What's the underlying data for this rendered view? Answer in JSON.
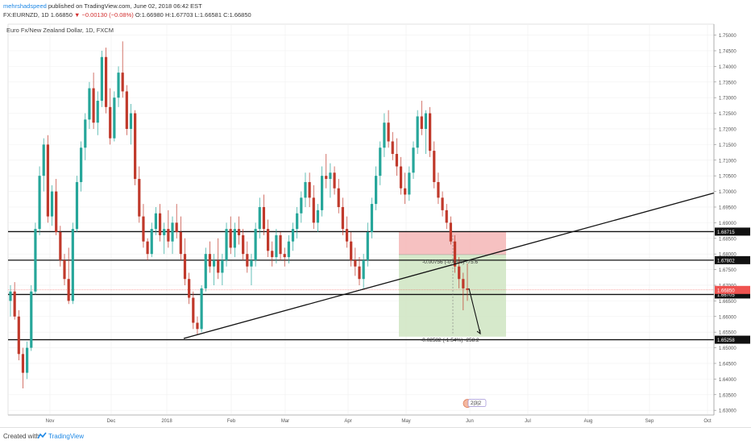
{
  "header": {
    "author": "mehrshadspeed",
    "published": "published on TradingView.com, June 02, 2018 06:42 EST",
    "symbol": "FX:EURNZD, 1D",
    "last": "1.66850",
    "change": "−0.00130 (−0.08%)",
    "ohlc": "O:1.66980 H:1.67703 L:1.66581 C:1.66850"
  },
  "chart_data": {
    "type": "candlestick",
    "title": "Euro Fx/New Zealand Dollar, 1D, FXCM",
    "y_ticks": [
      "1.75000",
      "1.74500",
      "1.74000",
      "1.73500",
      "1.73000",
      "1.72500",
      "1.72000",
      "1.71500",
      "1.71000",
      "1.70500",
      "1.70000",
      "1.69500",
      "1.69000",
      "1.68500",
      "1.68000",
      "1.67500",
      "1.67000",
      "1.66500",
      "1.66000",
      "1.65500",
      "1.65000",
      "1.64500",
      "1.64000",
      "1.63500",
      "1.63000"
    ],
    "ylim": [
      1.6285,
      1.7535
    ],
    "x_ticks": [
      "Nov",
      "Dec",
      "2018",
      "Feb",
      "Mar",
      "Apr",
      "May",
      "Jun",
      "Jul",
      "Aug",
      "Sep",
      "Oct"
    ],
    "horizontal_levels": [
      {
        "value": 1.68715,
        "label": "1.68715"
      },
      {
        "value": 1.67802,
        "label": "1.67802"
      },
      {
        "value": 1.66705,
        "label": "1.66705"
      },
      {
        "value": 1.65258,
        "label": "1.65258"
      }
    ],
    "last_price": {
      "value": 1.6685,
      "label": "1.66850"
    },
    "annotations": {
      "stop_zone_text": "-0.00756 (-0.45%) -75.6",
      "target_zone_text": "-0.02582 (-1.54%) -258.2",
      "icon_text": "2|3|2"
    },
    "colors": {
      "up": "#26a69a",
      "down": "#c0392b",
      "stop": "#f4b6b6",
      "target": "#cfe5c2",
      "last": "#ef5350"
    },
    "candles": [
      {
        "o": 1.665,
        "h": 1.67,
        "l": 1.66,
        "c": 1.668
      },
      {
        "o": 1.668,
        "h": 1.671,
        "l": 1.659,
        "c": 1.66
      },
      {
        "o": 1.66,
        "h": 1.662,
        "l": 1.646,
        "c": 1.648
      },
      {
        "o": 1.648,
        "h": 1.65,
        "l": 1.637,
        "c": 1.642
      },
      {
        "o": 1.642,
        "h": 1.652,
        "l": 1.64,
        "c": 1.65
      },
      {
        "o": 1.65,
        "h": 1.67,
        "l": 1.649,
        "c": 1.668
      },
      {
        "o": 1.668,
        "h": 1.69,
        "l": 1.667,
        "c": 1.688
      },
      {
        "o": 1.688,
        "h": 1.708,
        "l": 1.686,
        "c": 1.705
      },
      {
        "o": 1.705,
        "h": 1.717,
        "l": 1.7,
        "c": 1.715
      },
      {
        "o": 1.715,
        "h": 1.718,
        "l": 1.69,
        "c": 1.692
      },
      {
        "o": 1.692,
        "h": 1.702,
        "l": 1.689,
        "c": 1.7
      },
      {
        "o": 1.7,
        "h": 1.704,
        "l": 1.686,
        "c": 1.687
      },
      {
        "o": 1.687,
        "h": 1.689,
        "l": 1.676,
        "c": 1.678
      },
      {
        "o": 1.678,
        "h": 1.68,
        "l": 1.67,
        "c": 1.672
      },
      {
        "o": 1.672,
        "h": 1.682,
        "l": 1.664,
        "c": 1.665
      },
      {
        "o": 1.665,
        "h": 1.69,
        "l": 1.664,
        "c": 1.688
      },
      {
        "o": 1.688,
        "h": 1.705,
        "l": 1.687,
        "c": 1.703
      },
      {
        "o": 1.703,
        "h": 1.716,
        "l": 1.7,
        "c": 1.714
      },
      {
        "o": 1.714,
        "h": 1.725,
        "l": 1.71,
        "c": 1.723
      },
      {
        "o": 1.723,
        "h": 1.735,
        "l": 1.72,
        "c": 1.733
      },
      {
        "o": 1.733,
        "h": 1.738,
        "l": 1.72,
        "c": 1.722
      },
      {
        "o": 1.722,
        "h": 1.732,
        "l": 1.718,
        "c": 1.729
      },
      {
        "o": 1.729,
        "h": 1.745,
        "l": 1.727,
        "c": 1.743
      },
      {
        "o": 1.743,
        "h": 1.746,
        "l": 1.725,
        "c": 1.727
      },
      {
        "o": 1.727,
        "h": 1.733,
        "l": 1.715,
        "c": 1.717
      },
      {
        "o": 1.717,
        "h": 1.732,
        "l": 1.716,
        "c": 1.73
      },
      {
        "o": 1.73,
        "h": 1.74,
        "l": 1.727,
        "c": 1.738
      },
      {
        "o": 1.738,
        "h": 1.748,
        "l": 1.73,
        "c": 1.732
      },
      {
        "o": 1.732,
        "h": 1.734,
        "l": 1.718,
        "c": 1.72
      },
      {
        "o": 1.72,
        "h": 1.728,
        "l": 1.715,
        "c": 1.725
      },
      {
        "o": 1.725,
        "h": 1.726,
        "l": 1.702,
        "c": 1.704
      },
      {
        "o": 1.704,
        "h": 1.708,
        "l": 1.69,
        "c": 1.692
      },
      {
        "o": 1.692,
        "h": 1.696,
        "l": 1.682,
        "c": 1.684
      },
      {
        "o": 1.684,
        "h": 1.685,
        "l": 1.678,
        "c": 1.68
      },
      {
        "o": 1.68,
        "h": 1.69,
        "l": 1.679,
        "c": 1.688
      },
      {
        "o": 1.688,
        "h": 1.695,
        "l": 1.686,
        "c": 1.693
      },
      {
        "o": 1.693,
        "h": 1.696,
        "l": 1.684,
        "c": 1.686
      },
      {
        "o": 1.686,
        "h": 1.69,
        "l": 1.68,
        "c": 1.688
      },
      {
        "o": 1.688,
        "h": 1.694,
        "l": 1.682,
        "c": 1.684
      },
      {
        "o": 1.684,
        "h": 1.692,
        "l": 1.68,
        "c": 1.69
      },
      {
        "o": 1.69,
        "h": 1.696,
        "l": 1.685,
        "c": 1.687
      },
      {
        "o": 1.687,
        "h": 1.692,
        "l": 1.678,
        "c": 1.68
      },
      {
        "o": 1.68,
        "h": 1.685,
        "l": 1.67,
        "c": 1.672
      },
      {
        "o": 1.672,
        "h": 1.674,
        "l": 1.664,
        "c": 1.666
      },
      {
        "o": 1.666,
        "h": 1.668,
        "l": 1.656,
        "c": 1.658
      },
      {
        "o": 1.658,
        "h": 1.66,
        "l": 1.654,
        "c": 1.656
      },
      {
        "o": 1.656,
        "h": 1.67,
        "l": 1.655,
        "c": 1.669
      },
      {
        "o": 1.669,
        "h": 1.682,
        "l": 1.668,
        "c": 1.68
      },
      {
        "o": 1.68,
        "h": 1.684,
        "l": 1.674,
        "c": 1.676
      },
      {
        "o": 1.676,
        "h": 1.68,
        "l": 1.67,
        "c": 1.678
      },
      {
        "o": 1.678,
        "h": 1.685,
        "l": 1.672,
        "c": 1.674
      },
      {
        "o": 1.674,
        "h": 1.68,
        "l": 1.67,
        "c": 1.678
      },
      {
        "o": 1.678,
        "h": 1.69,
        "l": 1.676,
        "c": 1.688
      },
      {
        "o": 1.688,
        "h": 1.692,
        "l": 1.68,
        "c": 1.682
      },
      {
        "o": 1.682,
        "h": 1.69,
        "l": 1.679,
        "c": 1.688
      },
      {
        "o": 1.688,
        "h": 1.692,
        "l": 1.683,
        "c": 1.686
      },
      {
        "o": 1.686,
        "h": 1.688,
        "l": 1.678,
        "c": 1.68
      },
      {
        "o": 1.68,
        "h": 1.684,
        "l": 1.674,
        "c": 1.676
      },
      {
        "o": 1.676,
        "h": 1.68,
        "l": 1.67,
        "c": 1.678
      },
      {
        "o": 1.678,
        "h": 1.69,
        "l": 1.676,
        "c": 1.688
      },
      {
        "o": 1.688,
        "h": 1.698,
        "l": 1.685,
        "c": 1.695
      },
      {
        "o": 1.695,
        "h": 1.699,
        "l": 1.686,
        "c": 1.688
      },
      {
        "o": 1.688,
        "h": 1.691,
        "l": 1.679,
        "c": 1.681
      },
      {
        "o": 1.681,
        "h": 1.684,
        "l": 1.676,
        "c": 1.679
      },
      {
        "o": 1.679,
        "h": 1.688,
        "l": 1.677,
        "c": 1.686
      },
      {
        "o": 1.686,
        "h": 1.687,
        "l": 1.678,
        "c": 1.68
      },
      {
        "o": 1.68,
        "h": 1.682,
        "l": 1.676,
        "c": 1.679
      },
      {
        "o": 1.679,
        "h": 1.686,
        "l": 1.677,
        "c": 1.684
      },
      {
        "o": 1.684,
        "h": 1.69,
        "l": 1.681,
        "c": 1.688
      },
      {
        "o": 1.688,
        "h": 1.695,
        "l": 1.685,
        "c": 1.693
      },
      {
        "o": 1.693,
        "h": 1.7,
        "l": 1.69,
        "c": 1.698
      },
      {
        "o": 1.698,
        "h": 1.706,
        "l": 1.695,
        "c": 1.703
      },
      {
        "o": 1.703,
        "h": 1.706,
        "l": 1.695,
        "c": 1.698
      },
      {
        "o": 1.698,
        "h": 1.702,
        "l": 1.688,
        "c": 1.69
      },
      {
        "o": 1.69,
        "h": 1.696,
        "l": 1.687,
        "c": 1.694
      },
      {
        "o": 1.694,
        "h": 1.708,
        "l": 1.692,
        "c": 1.705
      },
      {
        "o": 1.705,
        "h": 1.712,
        "l": 1.701,
        "c": 1.704
      },
      {
        "o": 1.704,
        "h": 1.709,
        "l": 1.698,
        "c": 1.706
      },
      {
        "o": 1.706,
        "h": 1.708,
        "l": 1.699,
        "c": 1.701
      },
      {
        "o": 1.701,
        "h": 1.704,
        "l": 1.693,
        "c": 1.695
      },
      {
        "o": 1.695,
        "h": 1.698,
        "l": 1.686,
        "c": 1.688
      },
      {
        "o": 1.688,
        "h": 1.692,
        "l": 1.682,
        "c": 1.684
      },
      {
        "o": 1.684,
        "h": 1.687,
        "l": 1.676,
        "c": 1.678
      },
      {
        "o": 1.678,
        "h": 1.682,
        "l": 1.673,
        "c": 1.676
      },
      {
        "o": 1.676,
        "h": 1.679,
        "l": 1.67,
        "c": 1.672
      },
      {
        "o": 1.672,
        "h": 1.68,
        "l": 1.669,
        "c": 1.678
      },
      {
        "o": 1.678,
        "h": 1.69,
        "l": 1.676,
        "c": 1.687
      },
      {
        "o": 1.687,
        "h": 1.698,
        "l": 1.685,
        "c": 1.696
      },
      {
        "o": 1.696,
        "h": 1.708,
        "l": 1.694,
        "c": 1.705
      },
      {
        "o": 1.705,
        "h": 1.716,
        "l": 1.702,
        "c": 1.714
      },
      {
        "o": 1.714,
        "h": 1.725,
        "l": 1.711,
        "c": 1.722
      },
      {
        "o": 1.722,
        "h": 1.726,
        "l": 1.714,
        "c": 1.716
      },
      {
        "o": 1.716,
        "h": 1.719,
        "l": 1.71,
        "c": 1.712
      },
      {
        "o": 1.712,
        "h": 1.717,
        "l": 1.705,
        "c": 1.708
      },
      {
        "o": 1.708,
        "h": 1.711,
        "l": 1.699,
        "c": 1.701
      },
      {
        "o": 1.701,
        "h": 1.706,
        "l": 1.696,
        "c": 1.699
      },
      {
        "o": 1.699,
        "h": 1.708,
        "l": 1.697,
        "c": 1.706
      },
      {
        "o": 1.706,
        "h": 1.716,
        "l": 1.704,
        "c": 1.714
      },
      {
        "o": 1.714,
        "h": 1.726,
        "l": 1.712,
        "c": 1.724
      },
      {
        "o": 1.724,
        "h": 1.729,
        "l": 1.718,
        "c": 1.72
      },
      {
        "o": 1.72,
        "h": 1.726,
        "l": 1.712,
        "c": 1.725
      },
      {
        "o": 1.725,
        "h": 1.727,
        "l": 1.711,
        "c": 1.713
      },
      {
        "o": 1.713,
        "h": 1.716,
        "l": 1.701,
        "c": 1.703
      },
      {
        "o": 1.703,
        "h": 1.706,
        "l": 1.696,
        "c": 1.698
      },
      {
        "o": 1.698,
        "h": 1.7,
        "l": 1.692,
        "c": 1.694
      },
      {
        "o": 1.694,
        "h": 1.696,
        "l": 1.688,
        "c": 1.69
      },
      {
        "o": 1.69,
        "h": 1.692,
        "l": 1.683,
        "c": 1.684
      },
      {
        "o": 1.684,
        "h": 1.686,
        "l": 1.674,
        "c": 1.676
      },
      {
        "o": 1.676,
        "h": 1.679,
        "l": 1.669,
        "c": 1.672
      },
      {
        "o": 1.672,
        "h": 1.674,
        "l": 1.662,
        "c": 1.669
      },
      {
        "o": 1.669,
        "h": 1.677,
        "l": 1.665,
        "c": 1.6685
      }
    ]
  },
  "footer": {
    "created": "Created with",
    "brand": "TradingView"
  }
}
